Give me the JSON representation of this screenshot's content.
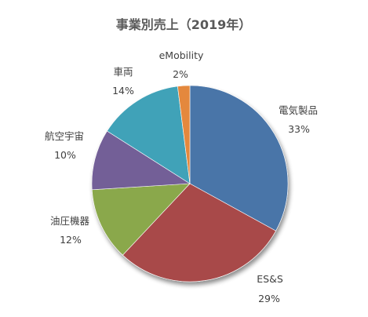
{
  "chart_data": {
    "type": "pie",
    "title": "事業別売上（2019年）",
    "start_angle_deg": 0,
    "direction": "clockwise",
    "legend": "none",
    "slices": [
      {
        "name": "電気製品",
        "value": 33,
        "label": "33%",
        "color": "#4a74a8"
      },
      {
        "name": "ES&S",
        "value": 29,
        "label": "29%",
        "color": "#a8484a"
      },
      {
        "name": "油圧機器",
        "value": 12,
        "label": "12%",
        "color": "#8aa84c"
      },
      {
        "name": "航空宇宙",
        "value": 10,
        "label": "10%",
        "color": "#735f97"
      },
      {
        "name": "車両",
        "value": 14,
        "label": "14%",
        "color": "#41a2b8"
      },
      {
        "name": "eMobility",
        "value": 2,
        "label": "2%",
        "color": "#e4883c"
      }
    ]
  }
}
